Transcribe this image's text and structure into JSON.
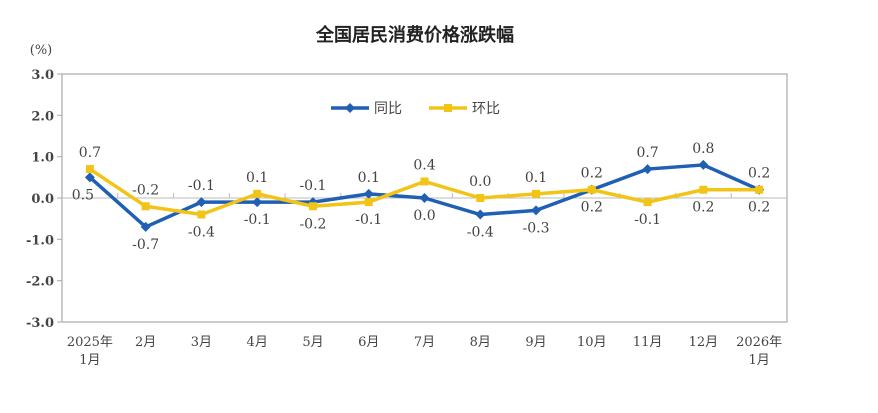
{
  "chart_data": {
    "type": "line",
    "title": "全国居民消费价格涨跌幅",
    "ylabel": "(%)",
    "xlabel": "",
    "ylim": [
      -3.0,
      3.0
    ],
    "yticks": [
      "3.0",
      "2.0",
      "1.0",
      "0.0",
      "-1.0",
      "-2.0",
      "-3.0"
    ],
    "ytick_values": [
      3,
      2,
      1,
      0,
      -1,
      -2,
      -3
    ],
    "categories": [
      [
        "2025年",
        "1月"
      ],
      [
        "2月"
      ],
      [
        "3月"
      ],
      [
        "4月"
      ],
      [
        "5月"
      ],
      [
        "6月"
      ],
      [
        "7月"
      ],
      [
        "8月"
      ],
      [
        "9月"
      ],
      [
        "10月"
      ],
      [
        "11月"
      ],
      [
        "12月"
      ],
      [
        "2026年",
        "1月"
      ]
    ],
    "legend_position": "top-center",
    "grid": false,
    "series": [
      {
        "name": "同比",
        "color": "#1f5fb4",
        "marker": "diamond",
        "values": [
          0.5,
          -0.7,
          -0.1,
          -0.1,
          -0.1,
          0.1,
          0.0,
          -0.4,
          -0.3,
          0.2,
          0.7,
          0.8,
          0.2
        ],
        "labels": [
          "0.5",
          "-0.7",
          "-0.1",
          "-0.1",
          "-0.1",
          "0.1",
          "0.0",
          "-0.4",
          "-0.3",
          "0.2",
          "0.7",
          "0.8",
          "0.2"
        ],
        "label_side": [
          "below",
          "below",
          "above",
          "below",
          "above",
          "above",
          "below",
          "below",
          "below",
          "below",
          "above",
          "above",
          "above"
        ]
      },
      {
        "name": "环比",
        "color": "#f2c417",
        "marker": "square",
        "values": [
          0.7,
          -0.2,
          -0.4,
          0.1,
          -0.2,
          -0.1,
          0.4,
          0.0,
          0.1,
          0.2,
          -0.1,
          0.2,
          0.2
        ],
        "labels": [
          "0.7",
          "-0.2",
          "-0.4",
          "0.1",
          "-0.2",
          "-0.1",
          "0.4",
          "0.0",
          "0.1",
          "0.2",
          "-0.1",
          "0.2",
          "0.2"
        ],
        "label_side": [
          "above",
          "above",
          "below",
          "above",
          "below",
          "below",
          "above",
          "above",
          "above",
          "above",
          "below",
          "below",
          "below"
        ]
      }
    ]
  }
}
